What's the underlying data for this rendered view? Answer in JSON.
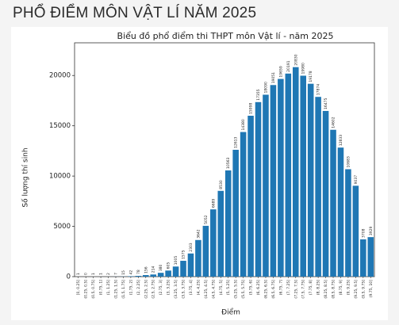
{
  "header": {
    "title": "PHỔ ĐIỂM MÔN VẬT LÍ NĂM 2025"
  },
  "chart_data": {
    "type": "bar",
    "title": "Biểu đồ phổ điểm thi THPT môn Vật lí - năm 2025",
    "x_label": "Điểm",
    "y_label": "Số lượng thí sinh",
    "categories": [
      "[0, 0.25]",
      "(0.25, 0.5]",
      "(0.5, 0.75]",
      "(0.75, 1]",
      "(1, 1.25]",
      "(1.25, 1.5]",
      "(1.5, 1.75]",
      "(1.75, 2]",
      "(2, 2.25]",
      "(2.25, 2.5]",
      "(2.5, 2.75]",
      "(2.75, 3]",
      "(3, 3.25]",
      "(3.25, 3.5]",
      "(3.5, 3.75]",
      "(3.75, 4]",
      "(4, 4.25]",
      "(4.25, 4.5]",
      "(4.5, 4.75]",
      "(4.75, 5]",
      "(5, 5.25]",
      "(5.25, 5.5]",
      "(5.5, 5.75]",
      "(5.75, 6]",
      "(6, 6.25]",
      "(6.25, 6.5]",
      "(6.5, 6.75]",
      "(6.75, 7]",
      "(7, 7.25]",
      "(7.25, 7.5]",
      "(7.5, 7.75]",
      "(7.75, 8]",
      "(8, 8.25]",
      "(8.25, 8.5]",
      "(8.5, 8.75]",
      "(8.75, 9]",
      "(9, 9.25]",
      "(9.25, 9.5]",
      "(9.5, 9.75]",
      "(9.75, 10]"
    ],
    "values": [
      1,
      0,
      1,
      1,
      2,
      7,
      15,
      42,
      78,
      156,
      214,
      380,
      605,
      1005,
      1575,
      2303,
      3642,
      5052,
      6689,
      8530,
      10563,
      12613,
      14380,
      15998,
      17355,
      18090,
      19051,
      19659,
      20191,
      20830,
      19980,
      19178,
      17874,
      16475,
      14602,
      12833,
      10683,
      9037,
      3708,
      3929
    ],
    "color": "#1f77b4",
    "ylim": [
      0,
      23250
    ],
    "yticks": [
      0,
      5000,
      10000,
      15000,
      20000
    ]
  }
}
